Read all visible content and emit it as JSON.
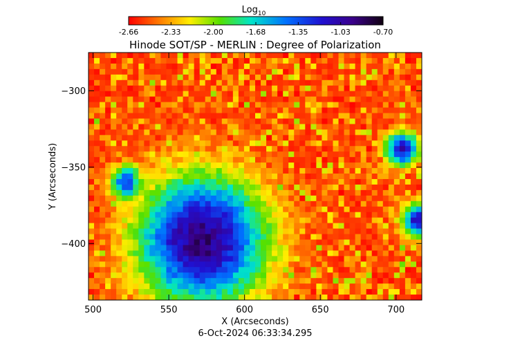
{
  "chart_data": {
    "type": "heatmap",
    "title": "Hinode SOT/SP - MERLIN : Degree of Polarization",
    "xlabel": "X (Arcseconds)",
    "ylabel": "Y (Arcseconds)",
    "footer": "6-Oct-2024 06:33:34.295",
    "xlim": [
      497,
      717
    ],
    "ylim": [
      -437,
      -275
    ],
    "xticks": [
      500,
      550,
      600,
      650,
      700
    ],
    "yticks": [
      -300,
      -350,
      -400
    ],
    "colorbar": {
      "label_base": "Log",
      "label_sub": "10",
      "ticks": [
        "-2.66",
        "-2.33",
        "-2.00",
        "-1.68",
        "-1.35",
        "-1.03",
        "-0.70"
      ],
      "range": [
        -2.66,
        -0.7
      ],
      "colormap": "rainbow (red to violet-black)"
    },
    "features": [
      {
        "type": "sunspot-region",
        "x": 572,
        "y": -398,
        "level": -0.9
      },
      {
        "type": "pore",
        "x": 704,
        "y": -338,
        "level": -1.1
      },
      {
        "type": "pore",
        "x": 715,
        "y": -385,
        "level": -1.1
      },
      {
        "type": "pore",
        "x": 522,
        "y": -360,
        "level": -1.35
      }
    ]
  }
}
